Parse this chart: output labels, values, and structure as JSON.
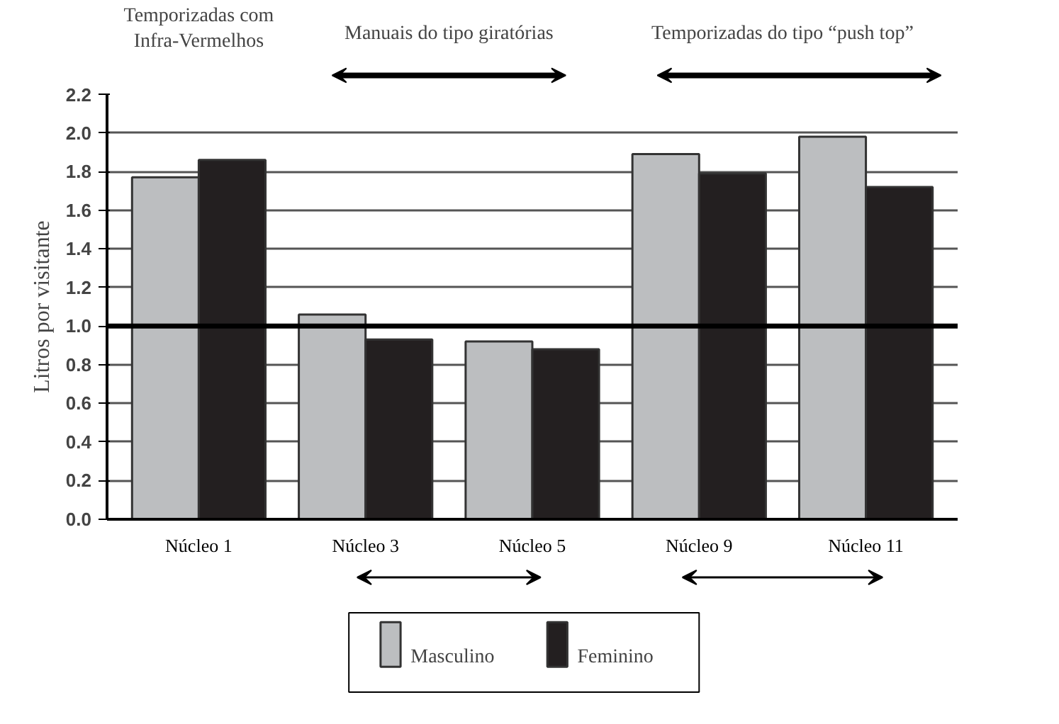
{
  "chart_data": {
    "type": "bar",
    "ylabel": "Litros por visitante",
    "categories": [
      "Núcleo 1",
      "Núcleo 3",
      "Núcleo 5",
      "Núcleo 9",
      "Núcleo 11"
    ],
    "series": [
      {
        "name": "Masculino",
        "color": "#bcbec0",
        "values": [
          1.77,
          1.06,
          0.92,
          1.89,
          1.98
        ]
      },
      {
        "name": "Feminino",
        "color": "#231f20",
        "values": [
          1.86,
          0.93,
          0.88,
          1.79,
          1.72
        ]
      }
    ],
    "ylim": [
      0,
      2.2
    ],
    "yticks": [
      {
        "value": 0,
        "label": "0.0"
      },
      0.2,
      0.4,
      0.6,
      0.8,
      {
        "value": 1,
        "label": "1.0"
      },
      1.2,
      1.4,
      1.6,
      1.8,
      {
        "value": 2,
        "label": "2.0"
      },
      2.2
    ],
    "ref_lines": [
      {
        "axis": "y",
        "value": 1.0,
        "color": "#000000"
      }
    ],
    "annotations": [
      "Temporizadas com\nInfra-Vermelhos",
      "Manuais do tipo giratórias",
      "Temporizadas do tipo “push top”"
    ],
    "grid": "y",
    "legend": "bottom"
  }
}
